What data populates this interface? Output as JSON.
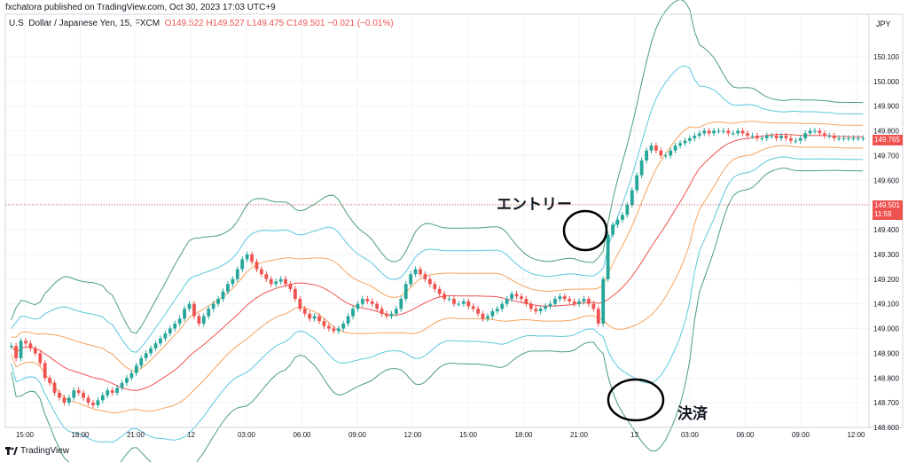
{
  "header": {
    "published": "fxchatora published on TradingView.com, Oct 30, 2023 17:03 UTC+9",
    "symbol": "U.S. Dollar / Japanese Yen, 15, FXCM",
    "ohlc": {
      "o": "O149.522",
      "h": "H149.527",
      "l": "L149.475",
      "c": "C149.501",
      "chg": "−0.021 (−0.01%)"
    }
  },
  "currency": "JPY",
  "footer": {
    "brand": "TradingView"
  },
  "price_labels": {
    "current_price": "149.501",
    "countdown": "11:59",
    "last_close": "149.765"
  },
  "annotations": {
    "entry": "エントリー",
    "exit": "決済"
  },
  "colors": {
    "up": "#26a69a",
    "down": "#ef5350",
    "band_outer": "#4c9e7a",
    "band_mid": "#5bc8dc",
    "band_inner": "#f7a35c",
    "ma": "#ef5350",
    "current_line": "#ef5350",
    "last_close_box": "#ef5350"
  },
  "chart_data": {
    "type": "candlestick",
    "indicator": "Bollinger Bands (±1σ, ±2σ, ±3σ)",
    "ylim": [
      148.6,
      150.2
    ],
    "y_ticks": [
      "150.100",
      "150.000",
      "149.900",
      "149.800",
      "149.700",
      "149.600",
      "149.500",
      "149.400",
      "149.300",
      "149.200",
      "149.100",
      "149.000",
      "148.900",
      "148.800",
      "148.700",
      "148.600"
    ],
    "x_ticks": [
      "15:00",
      "18:00",
      "21:00",
      "12",
      "03:00",
      "06:00",
      "09:00",
      "12:00",
      "15:00",
      "18:00",
      "21:00",
      "13",
      "03:00",
      "06:00",
      "09:00",
      "12:00"
    ],
    "current_price": 149.501,
    "close_series": [
      148.93,
      148.88,
      148.95,
      148.94,
      148.92,
      148.9,
      148.86,
      148.8,
      148.78,
      148.74,
      148.72,
      148.7,
      148.72,
      148.75,
      148.74,
      148.72,
      148.7,
      148.69,
      148.71,
      148.73,
      148.75,
      148.74,
      148.76,
      148.78,
      148.8,
      148.82,
      148.85,
      148.88,
      148.9,
      148.92,
      148.94,
      148.96,
      148.98,
      149.0,
      149.02,
      149.04,
      149.08,
      149.1,
      149.05,
      149.02,
      149.05,
      149.08,
      149.1,
      149.12,
      149.15,
      149.18,
      149.2,
      149.24,
      149.28,
      149.3,
      149.27,
      149.24,
      149.22,
      149.2,
      149.18,
      149.19,
      149.2,
      149.18,
      149.16,
      149.12,
      149.08,
      149.06,
      149.04,
      149.05,
      149.03,
      149.01,
      149.0,
      148.99,
      149.0,
      149.02,
      149.05,
      149.08,
      149.1,
      149.12,
      149.11,
      149.1,
      149.08,
      149.06,
      149.05,
      149.06,
      149.08,
      149.12,
      149.18,
      149.22,
      149.24,
      149.22,
      149.2,
      149.18,
      149.16,
      149.14,
      149.12,
      149.12,
      149.1,
      149.1,
      149.11,
      149.09,
      149.08,
      149.06,
      149.04,
      149.05,
      149.07,
      149.08,
      149.1,
      149.12,
      149.14,
      149.13,
      149.12,
      149.1,
      149.08,
      149.07,
      149.08,
      149.09,
      149.1,
      149.12,
      149.13,
      149.12,
      149.11,
      149.1,
      149.11,
      149.12,
      149.1,
      149.08,
      149.02,
      149.2,
      149.38,
      149.42,
      149.44,
      149.46,
      149.5,
      149.56,
      149.62,
      149.68,
      149.72,
      149.74,
      149.72,
      149.7,
      149.7,
      149.72,
      149.74,
      149.75,
      149.76,
      149.77,
      149.78,
      149.79,
      149.8,
      149.79,
      149.8,
      149.8,
      149.8,
      149.79,
      149.79,
      149.8,
      149.79,
      149.78,
      149.78,
      149.77,
      149.77,
      149.78,
      149.78,
      149.77,
      149.78,
      149.77,
      149.76,
      149.76,
      149.77,
      149.79,
      149.8,
      149.8,
      149.79,
      149.78,
      149.78,
      149.77,
      149.77,
      149.77,
      149.77,
      149.77,
      149.77,
      149.77
    ]
  }
}
